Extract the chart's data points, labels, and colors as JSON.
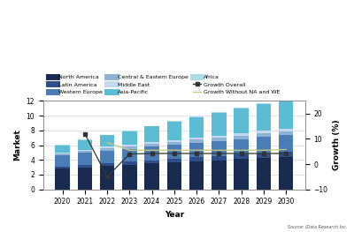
{
  "years": [
    2020,
    2021,
    2022,
    2023,
    2024,
    2025,
    2026,
    2027,
    2028,
    2029,
    2030
  ],
  "north_america": [
    2.8,
    3.0,
    3.2,
    3.35,
    3.5,
    3.65,
    3.8,
    3.95,
    4.1,
    4.25,
    4.4
  ],
  "latin_america": [
    0.3,
    0.35,
    0.38,
    0.42,
    0.46,
    0.5,
    0.54,
    0.58,
    0.62,
    0.66,
    0.7
  ],
  "western_europe": [
    1.5,
    1.6,
    1.7,
    1.75,
    1.82,
    1.89,
    1.96,
    2.03,
    2.1,
    2.17,
    2.24
  ],
  "central_eastern": [
    0.25,
    0.28,
    0.3,
    0.33,
    0.36,
    0.39,
    0.42,
    0.45,
    0.48,
    0.51,
    0.54
  ],
  "middle_east": [
    0.15,
    0.17,
    0.19,
    0.21,
    0.23,
    0.25,
    0.27,
    0.29,
    0.31,
    0.33,
    0.35
  ],
  "asia_pacific": [
    1.0,
    1.3,
    1.55,
    1.85,
    2.15,
    2.45,
    2.75,
    3.05,
    3.35,
    3.65,
    3.95
  ],
  "africa": [
    0.05,
    0.06,
    0.07,
    0.08,
    0.09,
    0.1,
    0.11,
    0.12,
    0.13,
    0.14,
    0.15
  ],
  "growth_overall": [
    null,
    12.0,
    -5.0,
    4.0,
    4.2,
    4.2,
    4.2,
    4.2,
    4.2,
    4.2,
    4.2
  ],
  "growth_without": [
    null,
    null,
    8.5,
    5.5,
    5.5,
    5.5,
    5.5,
    5.5,
    5.5,
    5.5,
    5.8
  ],
  "colors": {
    "north_america": "#1a2b52",
    "latin_america": "#2e4d8a",
    "western_europe": "#4a7db5",
    "central_eastern": "#8fb3d5",
    "middle_east": "#c5d9ee",
    "asia_pacific": "#5bbcd4",
    "africa": "#aadde8"
  },
  "ylabel_left": "Market",
  "ylabel_right": "Growth (%)",
  "xlabel": "Year",
  "source": "Source: iData Research Inc.",
  "legend_labels": [
    "North America",
    "Latin America",
    "Western Europe",
    "Central & Eastern Europe",
    "Middle East",
    "Asia-Pacific",
    "Africa",
    "Growth Overall",
    "Growth Without NA and WE"
  ],
  "growth_overall_color": "#333333",
  "growth_without_color": "#c8c87a",
  "background_color": "#ffffff"
}
